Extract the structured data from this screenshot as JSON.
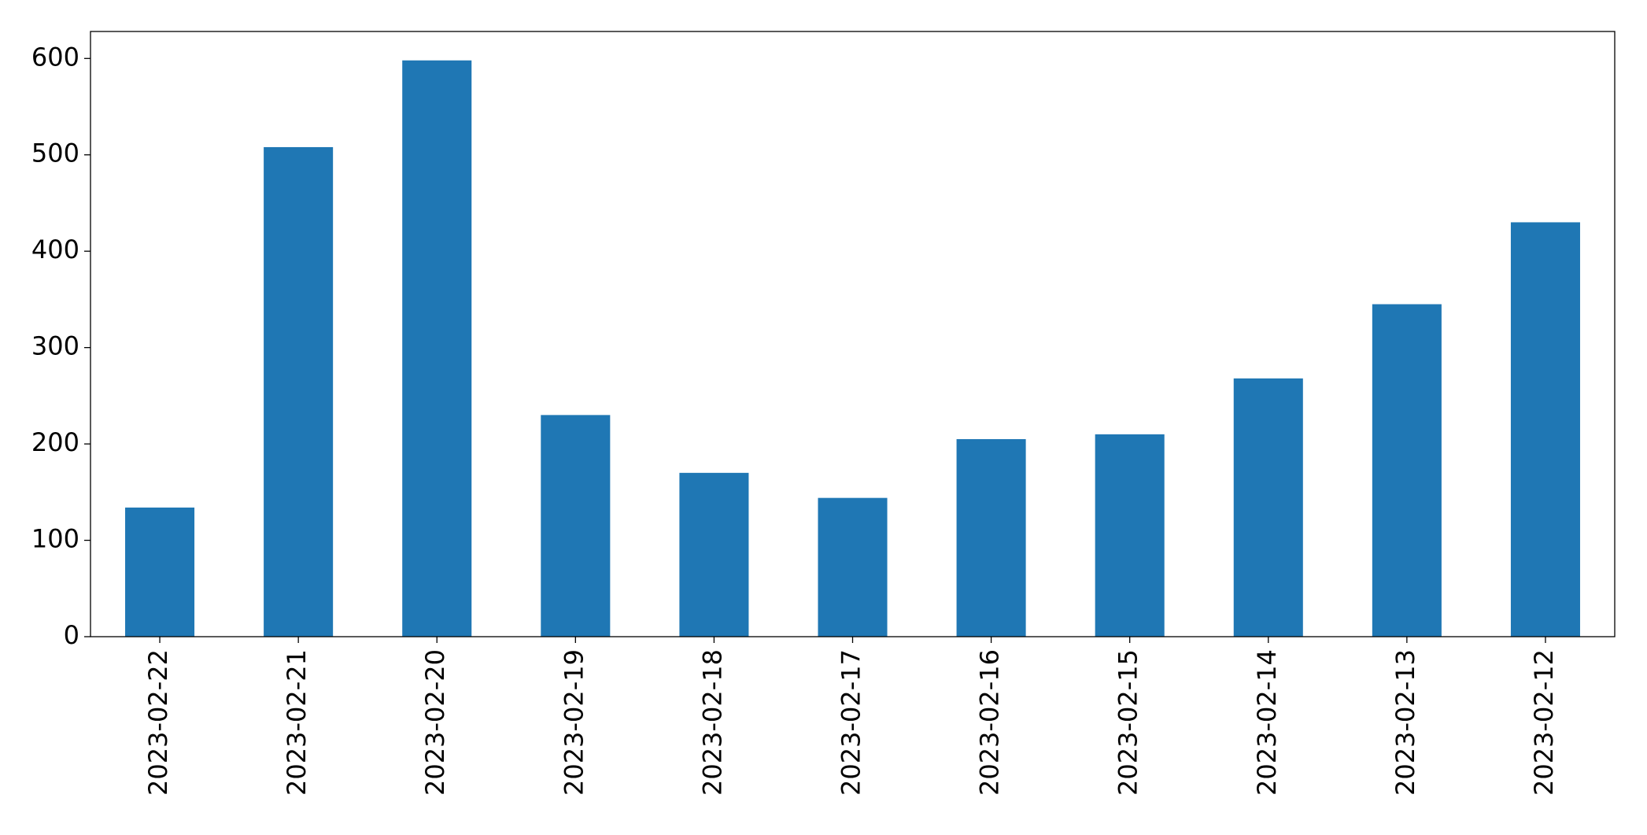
{
  "chart_data": {
    "type": "bar",
    "categories": [
      "2023-02-22",
      "2023-02-21",
      "2023-02-20",
      "2023-02-19",
      "2023-02-18",
      "2023-02-17",
      "2023-02-16",
      "2023-02-15",
      "2023-02-14",
      "2023-02-13",
      "2023-02-12"
    ],
    "values": [
      134,
      508,
      598,
      230,
      170,
      144,
      205,
      210,
      268,
      345,
      430
    ],
    "color": "#1f77b4",
    "ylim": [
      0,
      628
    ],
    "yticks": [
      0,
      100,
      200,
      300,
      400,
      500,
      600
    ],
    "grid": false
  }
}
